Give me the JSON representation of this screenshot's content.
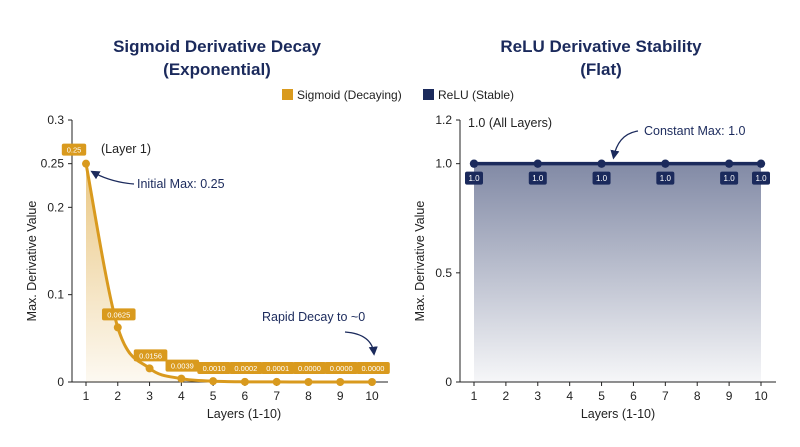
{
  "colors": {
    "sigmoid": "#d99a1e",
    "relu": "#1b2a5c",
    "title": "#1b2a5c",
    "axis": "#222222"
  },
  "legend": {
    "sigmoid_label": "Sigmoid (Decaying)",
    "relu_label": "ReLU (Stable)"
  },
  "chart_data": [
    {
      "type": "line",
      "title": "Sigmoid Derivative Decay\n(Exponential)",
      "title_lines": [
        "Sigmoid Derivative Decay",
        "(Exponential)"
      ],
      "xlabel": "Layers (1-10)",
      "ylabel": "Max. Derivative Value",
      "x": [
        1,
        2,
        3,
        4,
        5,
        6,
        7,
        8,
        9,
        10
      ],
      "xlim": [
        1,
        10
      ],
      "ylim": [
        0,
        0.3
      ],
      "yticks": [
        0,
        0.1,
        0.2,
        0.25,
        0.3
      ],
      "ytick_labels": [
        "0",
        "0.1",
        "0.2",
        "0.25",
        "0.3"
      ],
      "series": [
        {
          "name": "Sigmoid (Decaying)",
          "values": [
            0.25,
            0.0625,
            0.0156,
            0.0039,
            0.001,
            0.0002,
            0.0001,
            0.0,
            0.0,
            0.0
          ],
          "data_labels": [
            "0.25",
            "0.0625",
            "0.0156",
            "0.0039",
            "0.0010",
            "0.0002",
            "0.0001",
            "0.0000",
            "0.0000",
            "0.0000"
          ]
        }
      ],
      "annotations": {
        "first_point": "(Layer 1)",
        "initial_max": "Initial Max: 0.25",
        "rapid_decay": "Rapid Decay to ~0"
      },
      "grid": false,
      "area_fill": true
    },
    {
      "type": "line",
      "title": "ReLU Derivative Stability\n(Flat)",
      "title_lines": [
        "ReLU Derivative Stability",
        "(Flat)"
      ],
      "xlabel": "Layers (1-10)",
      "ylabel": "Max. Derivative Value",
      "x": [
        1,
        2,
        3,
        4,
        5,
        6,
        7,
        8,
        9,
        10
      ],
      "xlim": [
        1,
        10
      ],
      "ylim": [
        0,
        1.2
      ],
      "yticks": [
        0,
        0.5,
        1.0,
        1.2
      ],
      "ytick_labels": [
        "0",
        "0.5",
        "1.0",
        "1.2"
      ],
      "series": [
        {
          "name": "ReLU (Stable)",
          "values": [
            1.0,
            1.0,
            1.0,
            1.0,
            1.0,
            1.0,
            1.0,
            1.0,
            1.0,
            1.0
          ],
          "marker_x": [
            1,
            3,
            5,
            7,
            9,
            10
          ],
          "data_labels": [
            "1.0",
            "1.0",
            "1.0",
            "1.0",
            "1.0",
            "1.0"
          ]
        }
      ],
      "annotations": {
        "all_layers": "1.0 (All Layers)",
        "constant_max": "Constant Max: 1.0"
      },
      "grid": false,
      "area_fill": true
    }
  ]
}
